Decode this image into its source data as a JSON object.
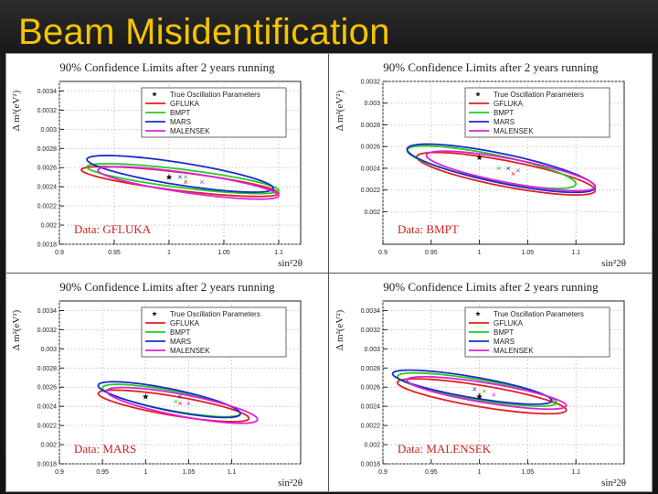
{
  "slide": {
    "title": "Beam Misidentification"
  },
  "colors": {
    "true": "#111111",
    "GFLUKA": "#e02020",
    "BMPT": "#22cc22",
    "MARS": "#1a2ccc",
    "MALENSEK": "#dd22dd",
    "data_label": "#cc2222",
    "title_text": "#f5c400"
  },
  "chart_data": [
    {
      "type": "scatter",
      "title": "90% Confidence Limits after 2 years running",
      "xlabel": "sin²2θ",
      "ylabel": "Δ m²(eV²)",
      "xlim": [
        0.9,
        1.12
      ],
      "ylim": [
        0.0018,
        0.0035
      ],
      "xticks": [
        0.9,
        0.95,
        1,
        1.05,
        1.1
      ],
      "xtick_labels": [
        "0.9",
        "0.95",
        "1",
        "1.05",
        "1.1"
      ],
      "yticks": [
        0.0018,
        0.002,
        0.0022,
        0.0024,
        0.0026,
        0.0028,
        0.003,
        0.0032,
        0.0034
      ],
      "ytick_labels": [
        "0.0018",
        "0.002",
        "0.0022",
        "0.0024",
        "0.0026",
        "0.0028",
        "0.003",
        "0.0032",
        "0.0034"
      ],
      "grid": true,
      "legend_position": "top-right",
      "legend": [
        "True Oscillation Parameters",
        "GFLUKA",
        "BMPT",
        "MARS",
        "MALENSEK"
      ],
      "annotation": "Data: GFLUKA",
      "true_point": {
        "x": 1.0,
        "y": 0.0025
      },
      "series": [
        {
          "name": "GFLUKA",
          "best_fit": {
            "x": 1.015,
            "y": 0.00245
          },
          "contour": {
            "x_min": 0.92,
            "x_max": 1.1,
            "y_high": 0.00263,
            "y_low": 0.00228
          }
        },
        {
          "name": "BMPT",
          "best_fit": {
            "x": 1.015,
            "y": 0.0025
          },
          "contour": {
            "x_min": 0.925,
            "x_max": 1.1,
            "y_high": 0.00266,
            "y_low": 0.00231
          }
        },
        {
          "name": "MARS",
          "best_fit": {
            "x": 1.01,
            "y": 0.0025
          },
          "contour": {
            "x_min": 0.925,
            "x_max": 1.095,
            "y_high": 0.00275,
            "y_low": 0.00232
          }
        },
        {
          "name": "MALENSEK",
          "best_fit": {
            "x": 1.03,
            "y": 0.00245
          },
          "contour": {
            "x_min": 0.935,
            "x_max": 1.1,
            "y_high": 0.00263,
            "y_low": 0.00225
          }
        }
      ]
    },
    {
      "type": "scatter",
      "title": "90% Confidence Limits after 2 years running",
      "xlabel": "sin²2θ",
      "ylabel": "Δ m²(eV²)",
      "xlim": [
        0.9,
        1.15
      ],
      "ylim": [
        0.0017,
        0.0032
      ],
      "xticks": [
        0.9,
        0.95,
        1,
        1.05,
        1.1
      ],
      "xtick_labels": [
        "0.9",
        "0.95",
        "1",
        "1.05",
        "1.1"
      ],
      "yticks": [
        0.002,
        0.0022,
        0.0024,
        0.0026,
        0.0028,
        0.003,
        0.0032
      ],
      "ytick_labels": [
        "0.002",
        "0.0022",
        "0.0024",
        "0.0026",
        "0.0028",
        "0.003",
        "0.0032"
      ],
      "grid": true,
      "legend_position": "top-right",
      "legend": [
        "True Oscillation Parameters",
        "GFLUKA",
        "BMPT",
        "MARS",
        "MALENSEK"
      ],
      "annotation": "Data: BMPT",
      "true_point": {
        "x": 1.0,
        "y": 0.0025
      },
      "series": [
        {
          "name": "GFLUKA",
          "best_fit": {
            "x": 1.035,
            "y": 0.00235
          },
          "contour": {
            "x_min": 0.935,
            "x_max": 1.12,
            "y_high": 0.00257,
            "y_low": 0.00213
          }
        },
        {
          "name": "BMPT",
          "best_fit": {
            "x": 1.02,
            "y": 0.0024
          },
          "contour": {
            "x_min": 0.925,
            "x_max": 1.1,
            "y_high": 0.00263,
            "y_low": 0.00219
          }
        },
        {
          "name": "MARS",
          "best_fit": {
            "x": 1.03,
            "y": 0.0024
          },
          "contour": {
            "x_min": 0.925,
            "x_max": 1.12,
            "y_high": 0.00265,
            "y_low": 0.00215
          }
        },
        {
          "name": "MALENSEK",
          "best_fit": {
            "x": 1.04,
            "y": 0.00238
          },
          "contour": {
            "x_min": 0.945,
            "x_max": 1.12,
            "y_high": 0.00258,
            "y_low": 0.00217
          }
        }
      ]
    },
    {
      "type": "scatter",
      "title": "90% Confidence Limits after 2 years running",
      "xlabel": "sin²2θ",
      "ylabel": "Δ m²(eV²)",
      "xlim": [
        0.9,
        1.18
      ],
      "ylim": [
        0.0018,
        0.0035
      ],
      "xticks": [
        0.9,
        0.95,
        1,
        1.05,
        1.1
      ],
      "xtick_labels": [
        "0.9",
        "0.95",
        "1",
        "1.05",
        "1.1"
      ],
      "yticks": [
        0.0018,
        0.002,
        0.0022,
        0.0024,
        0.0026,
        0.0028,
        0.003,
        0.0032,
        0.0034
      ],
      "ytick_labels": [
        "0.0018",
        "0.002",
        "0.0022",
        "0.0024",
        "0.0026",
        "0.0028",
        "0.003",
        "0.0032",
        "0.0034"
      ],
      "grid": true,
      "legend_position": "top-right",
      "legend": [
        "True Oscillation Parameters",
        "GFLUKA",
        "BMPT",
        "MARS",
        "MALENSEK"
      ],
      "annotation": "Data: MARS",
      "true_point": {
        "x": 1.0,
        "y": 0.0025
      },
      "series": [
        {
          "name": "GFLUKA",
          "best_fit": {
            "x": 1.04,
            "y": 0.00243
          },
          "contour": {
            "x_min": 0.945,
            "x_max": 1.12,
            "y_high": 0.00259,
            "y_low": 0.00222
          }
        },
        {
          "name": "BMPT",
          "best_fit": {
            "x": 1.035,
            "y": 0.00245
          },
          "contour": {
            "x_min": 0.95,
            "x_max": 1.11,
            "y_high": 0.00265,
            "y_low": 0.00227
          }
        },
        {
          "name": "MARS",
          "best_fit": {
            "x": 1.04,
            "y": 0.0025
          },
          "contour": {
            "x_min": 0.945,
            "x_max": 1.11,
            "y_high": 0.00268,
            "y_low": 0.00226
          }
        },
        {
          "name": "MALENSEK",
          "best_fit": {
            "x": 1.05,
            "y": 0.00243
          },
          "contour": {
            "x_min": 0.955,
            "x_max": 1.13,
            "y_high": 0.00262,
            "y_low": 0.0022
          }
        }
      ]
    },
    {
      "type": "scatter",
      "title": "90% Confidence Limits after 2 years running",
      "xlabel": "sin²2θ",
      "ylabel": "Δ m²(eV²)",
      "xlim": [
        0.9,
        1.15
      ],
      "ylim": [
        0.0018,
        0.0035
      ],
      "xticks": [
        0.9,
        0.95,
        1,
        1.05,
        1.1
      ],
      "xtick_labels": [
        "0.9",
        "0.95",
        "1",
        "1.05",
        "1.1"
      ],
      "yticks": [
        0.0018,
        0.002,
        0.0022,
        0.0024,
        0.0026,
        0.0028,
        0.003,
        0.0032,
        0.0034
      ],
      "ytick_labels": [
        "0.0018",
        "0.002",
        "0.0022",
        "0.0024",
        "0.0026",
        "0.0028",
        "0.003",
        "0.0032",
        "0.0034"
      ],
      "grid": true,
      "legend_position": "top-right",
      "legend": [
        "True Oscillation Parameters",
        "GFLUKA",
        "BMPT",
        "MARS",
        "MALENSEK"
      ],
      "annotation": "Data: MALENSEK",
      "true_point": {
        "x": 1.0,
        "y": 0.0025
      },
      "series": [
        {
          "name": "GFLUKA",
          "best_fit": {
            "x": 1.0,
            "y": 0.00252
          },
          "contour": {
            "x_min": 0.915,
            "x_max": 1.09,
            "y_high": 0.00271,
            "y_low": 0.0023
          }
        },
        {
          "name": "BMPT",
          "best_fit": {
            "x": 1.005,
            "y": 0.00256
          },
          "contour": {
            "x_min": 0.915,
            "x_max": 1.08,
            "y_high": 0.00277,
            "y_low": 0.00238
          }
        },
        {
          "name": "MARS",
          "best_fit": {
            "x": 0.995,
            "y": 0.00258
          },
          "contour": {
            "x_min": 0.91,
            "x_max": 1.075,
            "y_high": 0.0028,
            "y_low": 0.0024
          }
        },
        {
          "name": "MALENSEK",
          "best_fit": {
            "x": 1.015,
            "y": 0.00252
          },
          "contour": {
            "x_min": 0.925,
            "x_max": 1.09,
            "y_high": 0.00273,
            "y_low": 0.00235
          }
        }
      ]
    }
  ]
}
